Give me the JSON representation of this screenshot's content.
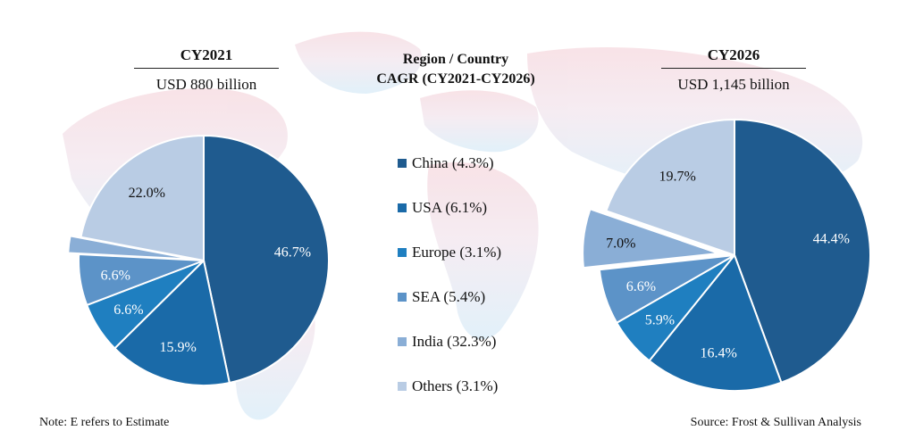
{
  "header": {
    "left_year": "CY2021",
    "left_total": "USD 880 billion",
    "right_year": "CY2026",
    "right_total": "USD 1,145 billion",
    "middle_title_line1": "Region / Country",
    "middle_title_line2": "CAGR (CY2021-CY2026)"
  },
  "legend": [
    {
      "label": "China (4.3%)",
      "color": "#1f5b8f"
    },
    {
      "label": "USA (6.1%)",
      "color": "#1a6aa8"
    },
    {
      "label": "Europe (3.1%)",
      "color": "#1f7fc0"
    },
    {
      "label": "SEA (5.4%)",
      "color": "#5c93c8"
    },
    {
      "label": "India (32.3%)",
      "color": "#8aaed6"
    },
    {
      "label": "Others (3.1%)",
      "color": "#b9cce4"
    }
  ],
  "footer": {
    "note": "Note: E refers to Estimate",
    "source": "Source: Frost & Sullivan Analysis"
  },
  "chart_data": [
    {
      "type": "pie",
      "title": "CY2021",
      "subtitle": "USD 880 billion",
      "categories": [
        "China",
        "USA",
        "Europe",
        "SEA",
        "India",
        "Others"
      ],
      "values": [
        46.7,
        15.9,
        6.6,
        6.6,
        2.2,
        22.0
      ],
      "labels": [
        "46.7%",
        "15.9%",
        "6.6%",
        "6.6%",
        "2.2%",
        "22.0%"
      ],
      "exploded": "India"
    },
    {
      "type": "pie",
      "title": "CY2026",
      "subtitle": "USD 1,145 billion",
      "categories": [
        "China",
        "USA",
        "Europe",
        "SEA",
        "India",
        "Others"
      ],
      "values": [
        44.4,
        16.4,
        5.9,
        6.6,
        7.0,
        19.7
      ],
      "labels": [
        "44.4%",
        "16.4%",
        "5.9%",
        "6.6%",
        "7.0%",
        "19.7%"
      ],
      "exploded": "India"
    }
  ]
}
